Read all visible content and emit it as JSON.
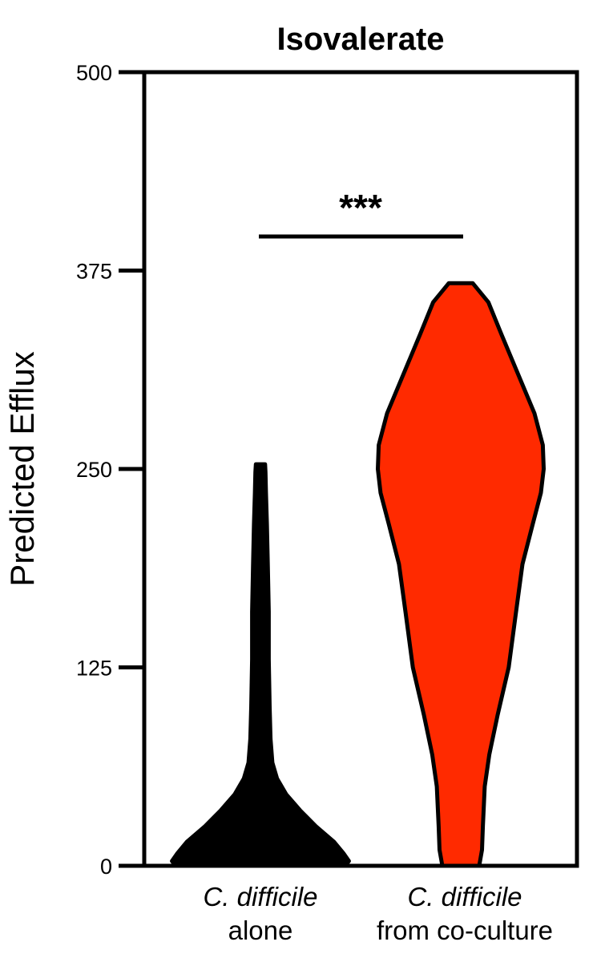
{
  "chart_data": {
    "type": "violin",
    "title": "Isovalerate",
    "ylabel": "Predicted Efflux",
    "xlabel": "",
    "ylim": [
      0,
      500
    ],
    "yticks": [
      0,
      125,
      250,
      375,
      500
    ],
    "grid": false,
    "categories": [
      {
        "line1": "C. difficile",
        "line2": "alone"
      },
      {
        "line1": "C. difficile",
        "line2": "from co-culture"
      }
    ],
    "series": [
      {
        "category_index": 0,
        "color": "#000000",
        "profile": [
          [
            0,
            0.92
          ],
          [
            3,
            0.96
          ],
          [
            8,
            0.9
          ],
          [
            15,
            0.8
          ],
          [
            25,
            0.6
          ],
          [
            35,
            0.43
          ],
          [
            45,
            0.28
          ],
          [
            55,
            0.18
          ],
          [
            65,
            0.13
          ],
          [
            80,
            0.11
          ],
          [
            100,
            0.1
          ],
          [
            130,
            0.09
          ],
          [
            160,
            0.09
          ],
          [
            190,
            0.08
          ],
          [
            215,
            0.07
          ],
          [
            235,
            0.06
          ],
          [
            248,
            0.055
          ],
          [
            253,
            0.05
          ]
        ]
      },
      {
        "category_index": 1,
        "color": "#ff2a00",
        "profile": [
          [
            0,
            0.2
          ],
          [
            10,
            0.23
          ],
          [
            25,
            0.24
          ],
          [
            50,
            0.26
          ],
          [
            70,
            0.31
          ],
          [
            95,
            0.4
          ],
          [
            125,
            0.52
          ],
          [
            160,
            0.6
          ],
          [
            190,
            0.67
          ],
          [
            215,
            0.78
          ],
          [
            235,
            0.87
          ],
          [
            250,
            0.9
          ],
          [
            265,
            0.89
          ],
          [
            285,
            0.8
          ],
          [
            310,
            0.62
          ],
          [
            335,
            0.44
          ],
          [
            355,
            0.3
          ],
          [
            367,
            0.13
          ]
        ]
      }
    ],
    "annotation": {
      "text": "***",
      "between": [
        0,
        1
      ],
      "y": 400
    }
  }
}
